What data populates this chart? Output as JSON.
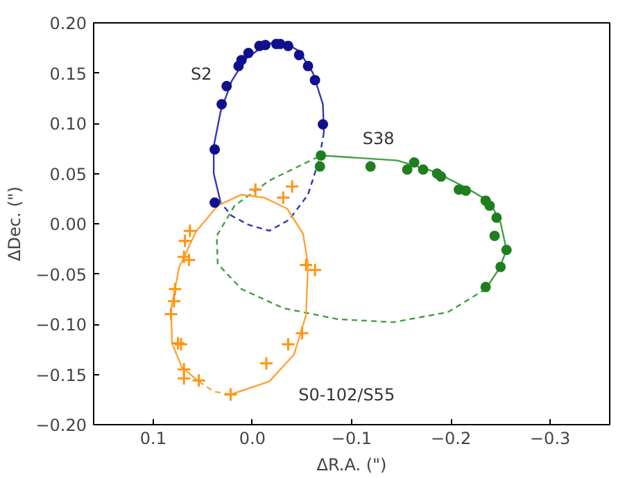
{
  "chart_data": {
    "type": "scatter",
    "xlabel": "ΔR.A. (\")",
    "ylabel": "ΔDec. (\")",
    "xlim": [
      0.16,
      -0.36
    ],
    "ylim": [
      -0.2,
      0.2
    ],
    "xticks": [
      {
        "value": 0.1,
        "label": "0.1"
      },
      {
        "value": 0.0,
        "label": "0.0"
      },
      {
        "value": -0.1,
        "label": "−0.1"
      },
      {
        "value": -0.2,
        "label": "−0.2"
      },
      {
        "value": -0.3,
        "label": "−0.3"
      }
    ],
    "yticks": [
      {
        "value": 0.2,
        "label": "0.20"
      },
      {
        "value": 0.15,
        "label": "0.15"
      },
      {
        "value": 0.1,
        "label": "0.10"
      },
      {
        "value": 0.05,
        "label": "0.05"
      },
      {
        "value": 0.0,
        "label": "0.00"
      },
      {
        "value": -0.05,
        "label": "−0.05"
      },
      {
        "value": -0.1,
        "label": "−0.10"
      },
      {
        "value": -0.15,
        "label": "−0.15"
      },
      {
        "value": -0.2,
        "label": "−0.20"
      }
    ],
    "grid": false,
    "series": [
      {
        "type": "line",
        "line_style": "solid",
        "color": "#3535b5",
        "x": [
          0.032,
          0.039,
          0.039,
          0.032,
          0.021,
          0.007,
          -0.014,
          -0.031,
          -0.047,
          -0.061,
          -0.071,
          -0.072
        ],
        "values": [
          0.021,
          0.05,
          0.077,
          0.112,
          0.142,
          0.164,
          0.179,
          0.181,
          0.172,
          0.15,
          0.119,
          0.091
        ]
      },
      {
        "type": "line",
        "line_style": "dashed",
        "color": "#3535b5",
        "x": [
          -0.072,
          -0.067,
          -0.056,
          -0.037,
          -0.017,
          0.004,
          0.021,
          0.032
        ],
        "values": [
          0.091,
          0.063,
          0.029,
          0.004,
          -0.007,
          -0.001,
          0.008,
          0.021
        ]
      },
      {
        "type": "line",
        "line_style": "solid",
        "color": "#3f9f3f",
        "x": [
          -0.069,
          -0.1,
          -0.146,
          -0.183,
          -0.215,
          -0.239,
          -0.25,
          -0.256,
          -0.249,
          -0.235
        ],
        "values": [
          0.068,
          0.066,
          0.063,
          0.052,
          0.036,
          0.022,
          0.001,
          -0.026,
          -0.044,
          -0.065
        ]
      },
      {
        "type": "line",
        "line_style": "dashed",
        "color": "#3f9f3f",
        "x": [
          -0.235,
          -0.197,
          -0.142,
          -0.086,
          -0.031,
          0.011,
          0.035,
          0.036,
          0.018,
          -0.017,
          -0.069
        ],
        "values": [
          -0.065,
          -0.088,
          -0.098,
          -0.095,
          -0.084,
          -0.065,
          -0.04,
          -0.012,
          0.018,
          0.043,
          0.068
        ]
      },
      {
        "type": "line",
        "line_style": "solid",
        "color": "#ffa235",
        "x": [
          0.022,
          -0.017,
          -0.042,
          -0.054,
          -0.056,
          -0.051,
          -0.035,
          -0.012,
          0.011,
          0.035,
          0.057,
          0.074,
          0.082,
          0.081,
          0.071,
          0.054
        ],
        "values": [
          -0.17,
          -0.157,
          -0.13,
          -0.091,
          -0.04,
          -0.01,
          0.015,
          0.026,
          0.029,
          0.018,
          -0.008,
          -0.044,
          -0.086,
          -0.119,
          -0.143,
          -0.157
        ]
      },
      {
        "type": "line",
        "line_style": "dashed",
        "color": "#ffa235",
        "x": [
          0.054,
          0.039,
          0.022
        ],
        "values": [
          -0.157,
          -0.167,
          -0.17
        ]
      },
      {
        "name": "S2",
        "marker": "circle",
        "color": "#10108f",
        "x": [
          0.038,
          0.038,
          0.031,
          0.026,
          0.014,
          0.011,
          0.004,
          -0.007,
          -0.013,
          -0.024,
          -0.028,
          -0.036,
          -0.047,
          -0.056,
          -0.063,
          -0.071
        ],
        "values": [
          0.021,
          0.074,
          0.119,
          0.137,
          0.157,
          0.163,
          0.17,
          0.177,
          0.178,
          0.179,
          0.179,
          0.177,
          0.168,
          0.157,
          0.143,
          0.099
        ]
      },
      {
        "name": "S38",
        "marker": "circle",
        "color": "#1f7f1f",
        "x": [
          -0.069,
          -0.068,
          -0.119,
          -0.156,
          -0.163,
          -0.172,
          -0.186,
          -0.19,
          -0.208,
          -0.215,
          -0.235,
          -0.239,
          -0.246,
          -0.244,
          -0.256,
          -0.25,
          -0.235
        ],
        "values": [
          0.068,
          0.057,
          0.057,
          0.054,
          0.061,
          0.054,
          0.05,
          0.047,
          0.034,
          0.033,
          0.023,
          0.018,
          0.006,
          -0.012,
          -0.026,
          -0.043,
          -0.063
        ]
      },
      {
        "name": "S0-102/S55",
        "marker": "cross",
        "color": "#ff9410",
        "x": [
          -0.003,
          -0.031,
          -0.04,
          0.063,
          0.068,
          0.069,
          0.064,
          -0.054,
          -0.063,
          0.078,
          0.079,
          0.082,
          0.075,
          0.072,
          -0.05,
          -0.036,
          -0.014,
          0.069,
          0.069,
          0.054,
          0.022
        ],
        "values": [
          0.034,
          0.026,
          0.037,
          -0.007,
          -0.017,
          -0.033,
          -0.036,
          -0.041,
          -0.046,
          -0.065,
          -0.077,
          -0.09,
          -0.119,
          -0.12,
          -0.109,
          -0.12,
          -0.139,
          -0.145,
          -0.154,
          -0.156,
          -0.17
        ]
      }
    ]
  }
}
